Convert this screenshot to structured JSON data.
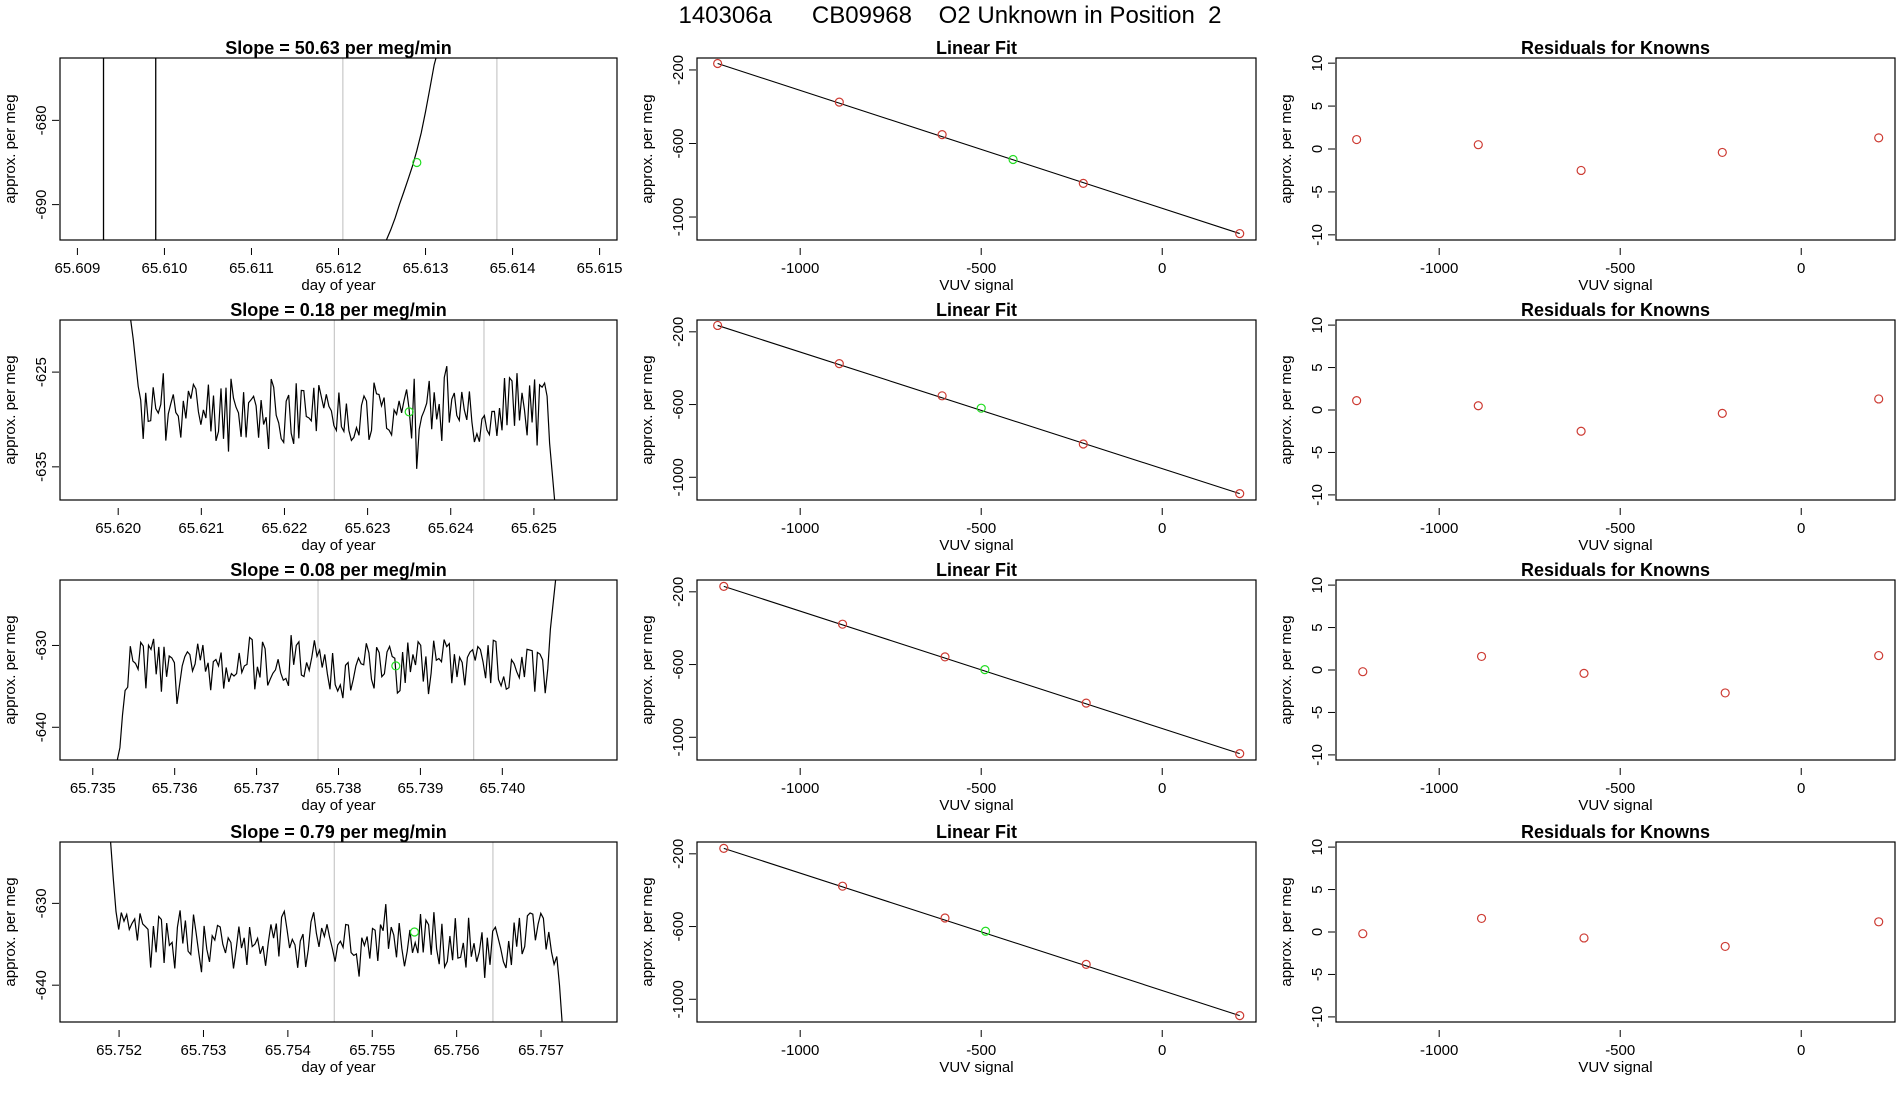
{
  "page": {
    "title": "140306a      CB09968    O2 Unknown in Position  2"
  },
  "colors": {
    "line": "#000000",
    "known_point": "#cd3b33",
    "unknown_point": "#22dd22",
    "marker_line": "#c8c8c8",
    "background": "#ffffff"
  },
  "chart_data": [
    {
      "panel": "row1-timeseries",
      "type": "line",
      "title": "Slope =  50.63  per meg/min",
      "xlabel": "day of year",
      "ylabel": "approx. per meg",
      "xlim": [
        65.6088,
        65.6152
      ],
      "ylim": [
        -694.2,
        -672.6
      ],
      "xticks": [
        "65.609",
        "65.610",
        "65.611",
        "65.612",
        "65.613",
        "65.614",
        "65.615"
      ],
      "xtick_values": [
        65.609,
        65.61,
        65.611,
        65.612,
        65.613,
        65.614,
        65.615
      ],
      "yticks": [
        "-680",
        "-690"
      ],
      "ytick_values": [
        -680,
        -690
      ],
      "vlines_black": [
        65.6093,
        65.6099
      ],
      "vlines_gray": [
        65.61205,
        65.61382
      ],
      "trace": [
        [
          65.61255,
          -694.2
        ],
        [
          65.6126,
          -693.0
        ],
        [
          65.61265,
          -691.6
        ],
        [
          65.6127,
          -690.0
        ],
        [
          65.61275,
          -688.5
        ],
        [
          65.6128,
          -687.0
        ],
        [
          65.61285,
          -685.4
        ],
        [
          65.6129,
          -683.6
        ],
        [
          65.61295,
          -681.5
        ],
        [
          65.613,
          -679.0
        ],
        [
          65.61305,
          -676.2
        ],
        [
          65.6131,
          -673.4
        ],
        [
          65.61312,
          -672.6
        ]
      ],
      "unknown_point": [
        65.6129,
        -685.0
      ]
    },
    {
      "panel": "row2-timeseries",
      "type": "line",
      "title": "Slope =  0.18  per meg/min",
      "xlabel": "day of year",
      "ylabel": "approx. per meg",
      "xlim": [
        65.6193,
        65.626
      ],
      "ylim": [
        -638.5,
        -619.5
      ],
      "xticks": [
        "65.620",
        "65.621",
        "65.622",
        "65.623",
        "65.624",
        "65.625"
      ],
      "xtick_values": [
        65.62,
        65.621,
        65.622,
        65.623,
        65.624,
        65.625
      ],
      "yticks": [
        "-625",
        "-635"
      ],
      "ytick_values": [
        -625,
        -635
      ],
      "vlines_gray": [
        65.6226,
        65.6244
      ],
      "trace_start": 65.62015,
      "trace_end": 65.62525,
      "trace_mean": -629.0,
      "trace_seed": 11,
      "trace_head": [
        -619.5,
        -621.5,
        -624.0,
        -626.5
      ],
      "trace_tail": [
        -632.5,
        -635.5,
        -638.5
      ],
      "unknown_point": [
        65.6235,
        -629.2
      ]
    },
    {
      "panel": "row3-timeseries",
      "type": "line",
      "title": "Slope =  0.08  per meg/min",
      "xlabel": "day of year",
      "ylabel": "approx. per meg",
      "xlim": [
        65.7346,
        65.7414
      ],
      "ylim": [
        -644.0,
        -622.0
      ],
      "xticks": [
        "65.735",
        "65.736",
        "65.737",
        "65.738",
        "65.739",
        "65.740"
      ],
      "xtick_values": [
        65.735,
        65.736,
        65.737,
        65.738,
        65.739,
        65.74
      ],
      "yticks": [
        "-630",
        "-640"
      ],
      "ytick_values": [
        -630,
        -640
      ],
      "vlines_gray": [
        65.73775,
        65.73965
      ],
      "trace_start": 65.7353,
      "trace_end": 65.74065,
      "trace_mean": -632.5,
      "trace_seed": 23,
      "trace_head": [
        -644.0,
        -642.5,
        -638.5,
        -635.5
      ],
      "trace_tail": [
        -628.0,
        -625.0,
        -622.0
      ],
      "unknown_point": [
        65.7387,
        -632.5
      ]
    },
    {
      "panel": "row4-timeseries",
      "type": "line",
      "title": "Slope =  0.79  per meg/min",
      "xlabel": "day of year",
      "ylabel": "approx. per meg",
      "xlim": [
        65.7513,
        65.7579
      ],
      "ylim": [
        -644.5,
        -622.5
      ],
      "xticks": [
        "65.752",
        "65.753",
        "65.754",
        "65.755",
        "65.756",
        "65.757"
      ],
      "xtick_values": [
        65.752,
        65.753,
        65.754,
        65.755,
        65.756,
        65.757
      ],
      "yticks": [
        "-630",
        "-640"
      ],
      "ytick_values": [
        -630,
        -640
      ],
      "vlines_gray": [
        65.75455,
        65.75643
      ],
      "trace_start": 65.7519,
      "trace_end": 65.75725,
      "trace_mean": -634.5,
      "trace_seed": 37,
      "trace_head": [
        -622.5,
        -627.0,
        -631.0
      ],
      "trace_tail": [
        -636.5,
        -640.0,
        -644.5
      ],
      "unknown_point": [
        65.7555,
        -633.5
      ]
    },
    {
      "panel": "row1-linearfit",
      "type": "scatter",
      "title": "Linear Fit",
      "xlabel": "VUV signal",
      "ylabel": "approx. per meg",
      "xlim": [
        -1285,
        259
      ],
      "ylim": [
        -1125,
        -135
      ],
      "xticks": [
        "-1000",
        "-500",
        "0"
      ],
      "xtick_values": [
        -1000,
        -500,
        0
      ],
      "yticks": [
        "-200",
        "-600",
        "-1000"
      ],
      "ytick_values": [
        -200,
        -600,
        -1000
      ],
      "knowns": [
        [
          -1228,
          -165
        ],
        [
          -892,
          -375
        ],
        [
          -608,
          -552
        ],
        [
          -218,
          -817
        ],
        [
          214,
          -1090
        ]
      ],
      "unknown": [
        -412,
        -687
      ],
      "fit_line": [
        [
          -1228,
          -165
        ],
        [
          214,
          -1090
        ]
      ]
    },
    {
      "panel": "row2-linearfit",
      "type": "scatter",
      "title": "Linear Fit",
      "xlabel": "VUV signal",
      "ylabel": "approx. per meg",
      "xlim": [
        -1285,
        259
      ],
      "ylim": [
        -1125,
        -135
      ],
      "xticks": [
        "-1000",
        "-500",
        "0"
      ],
      "xtick_values": [
        -1000,
        -500,
        0
      ],
      "yticks": [
        "-200",
        "-600",
        "-1000"
      ],
      "ytick_values": [
        -200,
        -600,
        -1000
      ],
      "knowns": [
        [
          -1228,
          -165
        ],
        [
          -892,
          -375
        ],
        [
          -608,
          -552
        ],
        [
          -218,
          -817
        ],
        [
          214,
          -1090
        ]
      ],
      "unknown": [
        -500,
        -620
      ],
      "fit_line": [
        [
          -1228,
          -165
        ],
        [
          214,
          -1090
        ]
      ]
    },
    {
      "panel": "row3-linearfit",
      "type": "scatter",
      "title": "Linear Fit",
      "xlabel": "VUV signal",
      "ylabel": "approx. per meg",
      "xlim": [
        -1285,
        259
      ],
      "ylim": [
        -1125,
        -135
      ],
      "xticks": [
        "-1000",
        "-500",
        "0"
      ],
      "xtick_values": [
        -1000,
        -500,
        0
      ],
      "yticks": [
        "-200",
        "-600",
        "-1000"
      ],
      "ytick_values": [
        -200,
        -600,
        -1000
      ],
      "knowns": [
        [
          -1211,
          -170
        ],
        [
          -883,
          -378
        ],
        [
          -600,
          -558
        ],
        [
          -210,
          -812
        ],
        [
          214,
          -1090
        ]
      ],
      "unknown": [
        -490,
        -628
      ],
      "fit_line": [
        [
          -1211,
          -170
        ],
        [
          214,
          -1090
        ]
      ]
    },
    {
      "panel": "row4-linearfit",
      "type": "scatter",
      "title": "Linear Fit",
      "xlabel": "VUV signal",
      "ylabel": "approx. per meg",
      "xlim": [
        -1285,
        259
      ],
      "ylim": [
        -1125,
        -135
      ],
      "xticks": [
        "-1000",
        "-500",
        "0"
      ],
      "xtick_values": [
        -1000,
        -500,
        0
      ],
      "yticks": [
        "-200",
        "-600",
        "-1000"
      ],
      "ytick_values": [
        -200,
        -600,
        -1000
      ],
      "knowns": [
        [
          -1211,
          -170
        ],
        [
          -883,
          -378
        ],
        [
          -600,
          -553
        ],
        [
          -210,
          -808
        ],
        [
          214,
          -1090
        ]
      ],
      "unknown": [
        -488,
        -626
      ],
      "fit_line": [
        [
          -1211,
          -170
        ],
        [
          214,
          -1090
        ]
      ]
    },
    {
      "panel": "row1-residuals",
      "type": "scatter",
      "title": "Residuals for Knowns",
      "xlabel": "VUV signal",
      "ylabel": "approx. per meg",
      "xlim": [
        -1285,
        259
      ],
      "ylim": [
        -10.6,
        10.6
      ],
      "xticks": [
        "-1000",
        "-500",
        "0"
      ],
      "xtick_values": [
        -1000,
        -500,
        0
      ],
      "yticks": [
        "10",
        "5",
        "0",
        "-5",
        "-10"
      ],
      "ytick_values": [
        10,
        5,
        0,
        -5,
        -10
      ],
      "points": [
        [
          -1228,
          1.1
        ],
        [
          -892,
          0.5
        ],
        [
          -608,
          -2.5
        ],
        [
          -218,
          -0.4
        ],
        [
          214,
          1.3
        ]
      ]
    },
    {
      "panel": "row2-residuals",
      "type": "scatter",
      "title": "Residuals for Knowns",
      "xlabel": "VUV signal",
      "ylabel": "approx. per meg",
      "xlim": [
        -1285,
        259
      ],
      "ylim": [
        -10.6,
        10.6
      ],
      "xticks": [
        "-1000",
        "-500",
        "0"
      ],
      "xtick_values": [
        -1000,
        -500,
        0
      ],
      "yticks": [
        "10",
        "5",
        "0",
        "-5",
        "-10"
      ],
      "ytick_values": [
        10,
        5,
        0,
        -5,
        -10
      ],
      "points": [
        [
          -1228,
          1.1
        ],
        [
          -892,
          0.5
        ],
        [
          -608,
          -2.5
        ],
        [
          -218,
          -0.4
        ],
        [
          214,
          1.3
        ]
      ]
    },
    {
      "panel": "row3-residuals",
      "type": "scatter",
      "title": "Residuals for Knowns",
      "xlabel": "VUV signal",
      "ylabel": "approx. per meg",
      "xlim": [
        -1285,
        259
      ],
      "ylim": [
        -10.6,
        10.6
      ],
      "xticks": [
        "-1000",
        "-500",
        "0"
      ],
      "xtick_values": [
        -1000,
        -500,
        0
      ],
      "yticks": [
        "10",
        "5",
        "0",
        "-5",
        "-10"
      ],
      "ytick_values": [
        10,
        5,
        0,
        -5,
        -10
      ],
      "points": [
        [
          -1211,
          -0.2
        ],
        [
          -883,
          1.6
        ],
        [
          -600,
          -0.4
        ],
        [
          -210,
          -2.7
        ],
        [
          214,
          1.7
        ]
      ]
    },
    {
      "panel": "row4-residuals",
      "type": "scatter",
      "title": "Residuals for Knowns",
      "xlabel": "VUV signal",
      "ylabel": "approx. per meg",
      "xlim": [
        -1285,
        259
      ],
      "ylim": [
        -10.6,
        10.6
      ],
      "xticks": [
        "-1000",
        "-500",
        "0"
      ],
      "xtick_values": [
        -1000,
        -500,
        0
      ],
      "yticks": [
        "10",
        "5",
        "0",
        "-5",
        "-10"
      ],
      "ytick_values": [
        10,
        5,
        0,
        -5,
        -10
      ],
      "points": [
        [
          -1211,
          -0.2
        ],
        [
          -883,
          1.6
        ],
        [
          -600,
          -0.7
        ],
        [
          -210,
          -1.7
        ],
        [
          214,
          1.2
        ]
      ]
    }
  ]
}
